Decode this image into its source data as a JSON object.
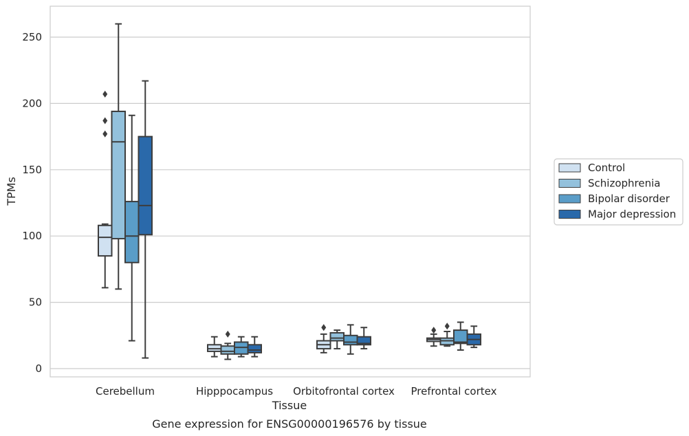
{
  "chart_data": {
    "type": "box",
    "title": "",
    "caption": "Gene expression for ENSG00000196576 by tissue",
    "xlabel": "Tissue",
    "ylabel": "TPMs",
    "ylim": [
      -5,
      275
    ],
    "yticks": [
      0,
      50,
      100,
      150,
      200,
      250
    ],
    "grid": "horizontal",
    "legend_position": "right",
    "categories": [
      "Cerebellum",
      "Hipppocampus",
      "Orbitofrontal cortex",
      "Prefrontal cortex"
    ],
    "series": [
      {
        "name": "Control",
        "color": "#d0e1f1",
        "boxes": [
          {
            "min": 61,
            "q1": 85,
            "median": 99,
            "q3": 108,
            "max": 109,
            "outliers": [
              177,
              187,
              207
            ]
          },
          {
            "min": 9,
            "q1": 13,
            "median": 15,
            "q3": 18,
            "max": 24,
            "outliers": []
          },
          {
            "min": 12,
            "q1": 15,
            "median": 18,
            "q3": 21,
            "max": 26,
            "outliers": [
              31
            ]
          },
          {
            "min": 17,
            "q1": 20.5,
            "median": 22,
            "q3": 23,
            "max": 26,
            "outliers": [
              29
            ]
          }
        ]
      },
      {
        "name": "Schizophrenia",
        "color": "#93c1dc",
        "boxes": [
          {
            "min": 60,
            "q1": 98,
            "median": 171,
            "q3": 194,
            "max": 260,
            "outliers": []
          },
          {
            "min": 7,
            "q1": 11,
            "median": 13,
            "q3": 17,
            "max": 19,
            "outliers": [
              26
            ]
          },
          {
            "min": 15,
            "q1": 21,
            "median": 23,
            "q3": 27,
            "max": 29,
            "outliers": []
          },
          {
            "min": 17,
            "q1": 18,
            "median": 21,
            "q3": 23,
            "max": 28,
            "outliers": [
              32
            ]
          }
        ]
      },
      {
        "name": "Bipolar disorder",
        "color": "#5a9dc8",
        "boxes": [
          {
            "min": 21,
            "q1": 80,
            "median": 100,
            "q3": 126,
            "max": 191,
            "outliers": []
          },
          {
            "min": 9,
            "q1": 11,
            "median": 16,
            "q3": 20,
            "max": 24,
            "outliers": []
          },
          {
            "min": 11,
            "q1": 18,
            "median": 20,
            "q3": 25,
            "max": 33,
            "outliers": []
          },
          {
            "min": 14,
            "q1": 19,
            "median": 20,
            "q3": 29,
            "max": 35,
            "outliers": []
          }
        ]
      },
      {
        "name": "Major depression",
        "color": "#2a69aa",
        "boxes": [
          {
            "min": 8,
            "q1": 101,
            "median": 123,
            "q3": 175,
            "max": 217,
            "outliers": []
          },
          {
            "min": 9,
            "q1": 12,
            "median": 14,
            "q3": 18,
            "max": 24,
            "outliers": []
          },
          {
            "min": 15,
            "q1": 18,
            "median": 19,
            "q3": 24,
            "max": 31,
            "outliers": []
          },
          {
            "min": 16,
            "q1": 18,
            "median": 22,
            "q3": 26,
            "max": 32,
            "outliers": []
          }
        ]
      }
    ]
  }
}
